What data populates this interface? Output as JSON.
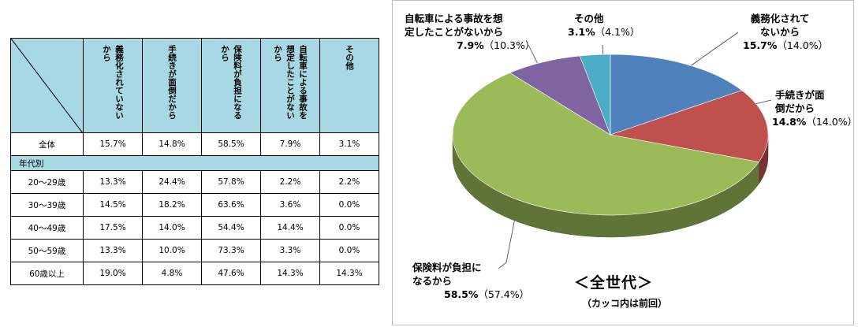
{
  "table": {
    "columns": [
      "義務化されていないから",
      "手続きが面倒だから",
      "保険料が負担になるから",
      "自転車による事故を想定したことがないから",
      "その他"
    ],
    "total_row": {
      "label": "全体",
      "values": [
        "15.7%",
        "14.8%",
        "58.5%",
        "7.9%",
        "3.1%"
      ]
    },
    "section_label": "年代別",
    "rows": [
      {
        "label": "20～29歳",
        "values": [
          "13.3%",
          "24.4%",
          "57.8%",
          "2.2%",
          "2.2%"
        ]
      },
      {
        "label": "30～39歳",
        "values": [
          "14.5%",
          "18.2%",
          "63.6%",
          "3.6%",
          "0.0%"
        ]
      },
      {
        "label": "40～49歳",
        "values": [
          "17.5%",
          "14.0%",
          "54.4%",
          "14.4%",
          "0.0%"
        ]
      },
      {
        "label": "50～59歳",
        "values": [
          "13.3%",
          "10.0%",
          "73.3%",
          "3.3%",
          "0.0%"
        ]
      },
      {
        "label": "60歳以上",
        "values": [
          "19.0%",
          "4.8%",
          "47.6%",
          "14.3%",
          "14.3%"
        ]
      }
    ]
  },
  "chart_data": {
    "type": "pie",
    "title": "＜全世代＞",
    "note": "（カッコ内は前回）",
    "slices": [
      {
        "label": "義務化されて\nないから",
        "value": 15.7,
        "value_text": "15.7%",
        "previous_text": "（14.0%）",
        "color": "#4f81bd"
      },
      {
        "label": "手続きが面\n倒だから",
        "value": 14.8,
        "value_text": "14.8%",
        "previous_text": "（14.0%）",
        "color": "#c0504d"
      },
      {
        "label": "保険料が負担に\nなるから",
        "value": 58.5,
        "value_text": "58.5%",
        "previous_text": "（57.4%）",
        "color": "#9bbb59"
      },
      {
        "label": "自転車による事故を想\n定したことがないから",
        "value": 7.9,
        "value_text": "7.9%",
        "previous_text": "（10.3%）",
        "color": "#8064a2"
      },
      {
        "label": "その他",
        "value": 3.1,
        "value_text": "3.1%",
        "previous_text": "（4.1%）",
        "color": "#4bacc6"
      }
    ]
  }
}
